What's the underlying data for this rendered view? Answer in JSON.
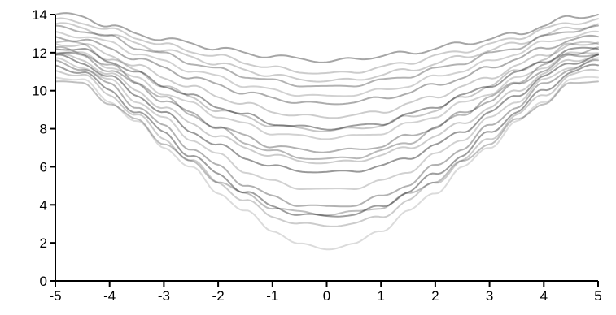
{
  "chart_data": {
    "type": "line",
    "title": "",
    "xlabel": "",
    "ylabel": "",
    "xlim": [
      -5,
      5
    ],
    "ylim": [
      0,
      14
    ],
    "grid": false,
    "x_ticks": [
      -5,
      -4,
      -3,
      -2,
      -1,
      0,
      1,
      2,
      3,
      4,
      5
    ],
    "x_tick_labels": [
      "-5",
      "-4",
      "-3",
      "-2",
      "-1",
      "0",
      "1",
      "2",
      "3",
      "4",
      "5"
    ],
    "y_ticks": [
      0,
      2,
      4,
      6,
      8,
      10,
      12,
      14
    ],
    "y_tick_labels": [
      "0",
      "2",
      "4",
      "6",
      "8",
      "10",
      "12",
      "14"
    ],
    "line_color": "#000000",
    "x": [
      -5,
      -4.5,
      -4,
      -3.5,
      -3,
      -2.5,
      -2,
      -1.5,
      -1,
      -0.5,
      0,
      0.5,
      1,
      1.5,
      2,
      2.5,
      3,
      3.5,
      4,
      4.5,
      5
    ],
    "series": [
      {
        "opacity": 0.35,
        "values": [
          14.0,
          13.9,
          13.4,
          13.0,
          12.7,
          12.5,
          12.2,
          12.0,
          11.8,
          11.7,
          11.5,
          11.7,
          11.8,
          12.0,
          12.2,
          12.5,
          12.7,
          13.0,
          13.4,
          13.9,
          14.0
        ]
      },
      {
        "opacity": 0.2,
        "values": [
          13.7,
          13.6,
          13.2,
          12.8,
          12.4,
          12.1,
          11.8,
          11.5,
          11.2,
          11.0,
          10.9,
          11.0,
          11.2,
          11.5,
          11.8,
          12.1,
          12.4,
          12.8,
          13.2,
          13.6,
          13.7
        ]
      },
      {
        "opacity": 0.3,
        "values": [
          13.3,
          13.2,
          12.8,
          12.3,
          11.9,
          11.5,
          11.1,
          10.8,
          10.5,
          10.3,
          10.2,
          10.3,
          10.5,
          10.8,
          11.1,
          11.5,
          11.9,
          12.3,
          12.8,
          13.2,
          13.3
        ]
      },
      {
        "opacity": 0.18,
        "values": [
          13.0,
          12.9,
          12.5,
          12.0,
          11.5,
          11.1,
          10.7,
          10.3,
          10.0,
          9.8,
          9.7,
          9.8,
          10.0,
          10.3,
          10.7,
          11.1,
          11.5,
          12.0,
          12.5,
          12.9,
          13.0
        ]
      },
      {
        "opacity": 0.32,
        "values": [
          12.8,
          12.7,
          12.2,
          11.7,
          11.2,
          10.7,
          10.3,
          9.9,
          9.6,
          9.4,
          9.3,
          9.4,
          9.6,
          9.9,
          10.3,
          10.7,
          11.2,
          11.7,
          12.2,
          12.7,
          12.8
        ]
      },
      {
        "opacity": 0.2,
        "values": [
          12.5,
          12.4,
          11.9,
          11.3,
          10.7,
          10.2,
          9.7,
          9.3,
          8.9,
          8.7,
          8.6,
          8.7,
          8.9,
          9.3,
          9.7,
          10.2,
          10.7,
          11.3,
          11.9,
          12.4,
          12.5
        ]
      },
      {
        "opacity": 0.38,
        "values": [
          12.3,
          12.1,
          11.6,
          10.9,
          10.3,
          9.7,
          9.2,
          8.7,
          8.3,
          8.1,
          8.0,
          8.1,
          8.3,
          8.7,
          9.2,
          9.7,
          10.3,
          10.9,
          11.6,
          12.1,
          12.3
        ]
      },
      {
        "opacity": 0.18,
        "values": [
          12.1,
          11.9,
          11.3,
          10.6,
          9.9,
          9.3,
          8.7,
          8.2,
          7.8,
          7.6,
          7.5,
          7.6,
          7.8,
          8.2,
          8.7,
          9.3,
          9.9,
          10.6,
          11.3,
          11.9,
          12.1
        ]
      },
      {
        "opacity": 0.3,
        "values": [
          12.0,
          11.8,
          11.1,
          10.3,
          9.5,
          8.8,
          8.1,
          7.6,
          7.1,
          6.9,
          6.8,
          6.9,
          7.1,
          7.6,
          8.1,
          8.8,
          9.5,
          10.3,
          11.1,
          11.8,
          12.0
        ]
      },
      {
        "opacity": 0.2,
        "values": [
          11.9,
          11.6,
          10.9,
          10.0,
          9.1,
          8.3,
          7.6,
          7.0,
          6.6,
          6.3,
          6.2,
          6.3,
          6.6,
          7.0,
          7.6,
          8.3,
          9.1,
          10.0,
          10.9,
          11.6,
          11.9
        ]
      },
      {
        "opacity": 0.4,
        "values": [
          11.8,
          11.5,
          10.7,
          9.8,
          8.8,
          7.9,
          7.1,
          6.5,
          6.0,
          5.8,
          5.7,
          5.8,
          6.0,
          6.5,
          7.1,
          7.9,
          8.8,
          9.8,
          10.7,
          11.5,
          11.8
        ]
      },
      {
        "opacity": 0.18,
        "values": [
          11.6,
          11.3,
          10.5,
          9.5,
          8.5,
          7.5,
          6.6,
          5.8,
          5.2,
          4.9,
          4.8,
          4.9,
          5.2,
          5.8,
          6.6,
          7.5,
          8.5,
          9.5,
          10.5,
          11.3,
          11.6
        ]
      },
      {
        "opacity": 0.3,
        "values": [
          11.5,
          11.2,
          10.3,
          9.2,
          8.1,
          7.0,
          6.0,
          5.1,
          4.4,
          4.0,
          3.9,
          4.0,
          4.4,
          5.1,
          6.0,
          7.0,
          8.1,
          9.2,
          10.3,
          11.2,
          11.5
        ]
      },
      {
        "opacity": 0.38,
        "values": [
          11.3,
          11.0,
          10.0,
          8.9,
          7.8,
          6.6,
          5.6,
          4.7,
          3.9,
          3.5,
          3.4,
          3.5,
          3.9,
          4.7,
          5.6,
          6.6,
          7.8,
          8.9,
          10.0,
          11.0,
          11.3
        ]
      },
      {
        "opacity": 0.2,
        "values": [
          11.1,
          10.8,
          9.8,
          8.7,
          7.5,
          6.3,
          5.2,
          4.2,
          3.4,
          3.0,
          2.9,
          3.0,
          3.4,
          4.2,
          5.2,
          6.3,
          7.5,
          8.7,
          9.8,
          10.8,
          11.1
        ]
      },
      {
        "opacity": 0.14,
        "values": [
          10.8,
          10.5,
          9.5,
          8.3,
          7.1,
          5.9,
          4.7,
          3.6,
          2.7,
          1.9,
          1.7,
          1.9,
          2.7,
          3.6,
          4.7,
          5.9,
          7.1,
          8.3,
          9.5,
          10.5,
          10.8
        ]
      },
      {
        "opacity": 0.25,
        "values": [
          10.6,
          10.3,
          9.4,
          8.4,
          7.3,
          6.2,
          5.3,
          4.5,
          3.9,
          3.6,
          3.5,
          3.6,
          3.9,
          4.5,
          5.3,
          6.2,
          7.3,
          8.4,
          9.4,
          10.3,
          10.6
        ]
      },
      {
        "opacity": 0.22,
        "values": [
          12.6,
          12.4,
          11.7,
          11.0,
          10.3,
          9.6,
          9.0,
          8.6,
          8.2,
          8.0,
          7.9,
          8.0,
          8.2,
          8.6,
          9.0,
          9.6,
          10.3,
          11.0,
          11.7,
          12.4,
          12.6
        ]
      },
      {
        "opacity": 0.2,
        "values": [
          13.5,
          13.3,
          12.9,
          12.5,
          12.1,
          11.8,
          11.4,
          11.1,
          10.8,
          10.6,
          10.5,
          10.6,
          10.8,
          11.1,
          11.4,
          11.8,
          12.1,
          12.5,
          12.9,
          13.3,
          13.5
        ]
      },
      {
        "opacity": 0.28,
        "values": [
          12.2,
          12.0,
          11.3,
          10.5,
          9.6,
          8.8,
          8.0,
          7.3,
          6.8,
          6.5,
          6.4,
          6.5,
          6.8,
          7.3,
          8.0,
          8.8,
          9.6,
          10.5,
          11.3,
          12.0,
          12.2
        ]
      }
    ]
  }
}
